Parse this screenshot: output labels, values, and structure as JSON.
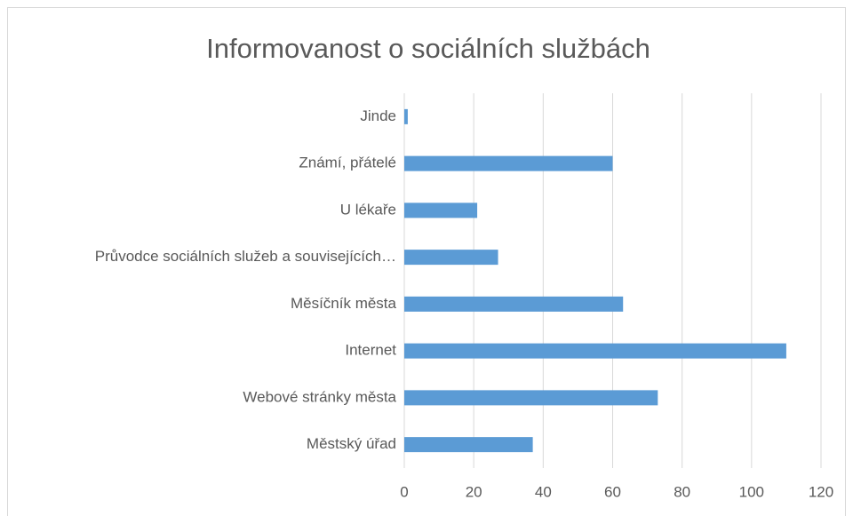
{
  "chart_data": {
    "type": "barh",
    "title": "Informovanost o sociálních službách",
    "categories": [
      "Jinde",
      "Známí, přátelé",
      "U lékaře",
      "Průvodce sociálních služeb a souvisejících…",
      "Měsíčník města",
      "Internet",
      "Webové stránky města",
      "Městský úřad"
    ],
    "values": [
      1,
      60,
      21,
      27,
      63,
      110,
      73,
      37
    ],
    "color": "#5b9bd5",
    "xlim": [
      0,
      120
    ],
    "xticks": [
      0,
      20,
      40,
      60,
      80,
      100,
      120
    ],
    "grid": true
  }
}
